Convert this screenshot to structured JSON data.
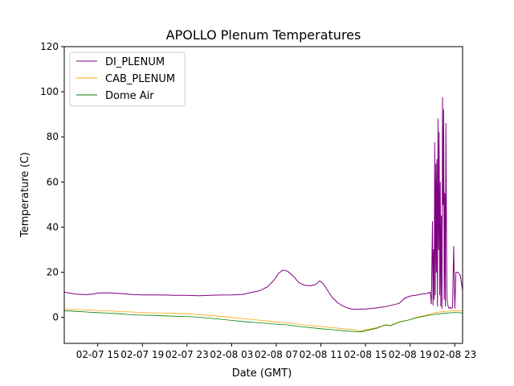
{
  "chart_data": {
    "type": "line",
    "title": "APOLLO Plenum Temperatures",
    "xlabel": "Date (GMT)",
    "ylabel": "Temperature (C)",
    "x_unit": "hours since 02-07 12:00 GMT",
    "xlim": [
      0,
      35.7
    ],
    "ylim": [
      -11.5,
      120
    ],
    "y_ticks": [
      0,
      20,
      40,
      60,
      80,
      100,
      120
    ],
    "x_ticks": [
      {
        "x": 3,
        "label": "02-07 15"
      },
      {
        "x": 7,
        "label": "02-07 19"
      },
      {
        "x": 11,
        "label": "02-07 23"
      },
      {
        "x": 15,
        "label": "02-08 03"
      },
      {
        "x": 19,
        "label": "02-08 07"
      },
      {
        "x": 23,
        "label": "02-08 11"
      },
      {
        "x": 27,
        "label": "02-08 15"
      },
      {
        "x": 31,
        "label": "02-08 19"
      },
      {
        "x": 35,
        "label": "02-08 23"
      }
    ],
    "grid": false,
    "legend_position": "top-left",
    "series": [
      {
        "name": "DI_PLENUM",
        "color": "#800080",
        "points": [
          [
            0,
            11.2
          ],
          [
            1,
            10.3
          ],
          [
            2,
            10.1
          ],
          [
            2.7,
            10.4
          ],
          [
            3,
            10.8
          ],
          [
            4,
            10.9
          ],
          [
            5,
            10.6
          ],
          [
            6,
            10.2
          ],
          [
            7,
            10.0
          ],
          [
            8,
            10.0
          ],
          [
            9,
            9.9
          ],
          [
            10,
            9.8
          ],
          [
            11,
            9.8
          ],
          [
            12,
            9.6
          ],
          [
            13,
            9.8
          ],
          [
            14,
            9.9
          ],
          [
            15,
            10.0
          ],
          [
            16,
            10.2
          ],
          [
            16.7,
            11.0
          ],
          [
            17.5,
            11.8
          ],
          [
            18.2,
            13.5
          ],
          [
            18.8,
            16.5
          ],
          [
            19.2,
            19.5
          ],
          [
            19.6,
            21.0
          ],
          [
            20,
            20.5
          ],
          [
            20.5,
            18.5
          ],
          [
            21,
            15.5
          ],
          [
            21.5,
            14.3
          ],
          [
            22,
            14.0
          ],
          [
            22.5,
            14.5
          ],
          [
            22.9,
            16.2
          ],
          [
            23.2,
            15.0
          ],
          [
            23.6,
            12.0
          ],
          [
            24,
            9.0
          ],
          [
            24.5,
            6.5
          ],
          [
            25,
            5.0
          ],
          [
            25.5,
            4.0
          ],
          [
            26,
            3.6
          ],
          [
            27,
            3.7
          ],
          [
            28,
            4.2
          ],
          [
            29,
            5.0
          ],
          [
            30,
            6.2
          ],
          [
            30.5,
            8.5
          ],
          [
            31,
            9.5
          ],
          [
            31.5,
            9.8
          ],
          [
            32,
            10.3
          ],
          [
            32.5,
            10.6
          ],
          [
            32.8,
            11.2
          ],
          [
            32.9,
            6.0
          ],
          [
            33.0,
            42.5
          ],
          [
            33.05,
            5.5
          ],
          [
            33.1,
            30.0
          ],
          [
            33.15,
            8.0
          ],
          [
            33.2,
            77.5
          ],
          [
            33.25,
            10.0
          ],
          [
            33.3,
            68.0
          ],
          [
            33.35,
            20.0
          ],
          [
            33.4,
            70.0
          ],
          [
            33.45,
            5.0
          ],
          [
            33.5,
            88.0
          ],
          [
            33.55,
            30.0
          ],
          [
            33.6,
            82.0
          ],
          [
            33.65,
            10.0
          ],
          [
            33.7,
            60.0
          ],
          [
            33.75,
            5.0
          ],
          [
            33.8,
            45.0
          ],
          [
            33.85,
            4.0
          ],
          [
            33.9,
            97.5
          ],
          [
            33.95,
            50.0
          ],
          [
            34.0,
            92.0
          ],
          [
            34.05,
            8.0
          ],
          [
            34.1,
            55.0
          ],
          [
            34.15,
            5.0
          ],
          [
            34.2,
            86.0
          ],
          [
            34.25,
            40.0
          ],
          [
            34.3,
            8.0
          ],
          [
            34.4,
            5.0
          ],
          [
            34.5,
            4.0
          ],
          [
            34.6,
            4.5
          ],
          [
            34.7,
            4.0
          ],
          [
            34.8,
            4.5
          ],
          [
            34.9,
            31.5
          ],
          [
            35.0,
            4.0
          ],
          [
            35.1,
            20.0
          ],
          [
            35.3,
            20.0
          ],
          [
            35.5,
            18.5
          ],
          [
            35.7,
            12.0
          ]
        ]
      },
      {
        "name": "CAB_PLENUM",
        "color": "#ffa500",
        "points": [
          [
            0,
            3.8
          ],
          [
            1,
            3.5
          ],
          [
            2,
            3.3
          ],
          [
            3,
            3.1
          ],
          [
            4,
            2.9
          ],
          [
            5,
            2.6
          ],
          [
            6,
            2.4
          ],
          [
            7,
            2.2
          ],
          [
            8,
            2.0
          ],
          [
            9,
            1.9
          ],
          [
            10,
            1.8
          ],
          [
            11,
            1.6
          ],
          [
            12,
            1.3
          ],
          [
            13,
            0.9
          ],
          [
            14,
            0.5
          ],
          [
            15,
            0.0
          ],
          [
            16,
            -0.5
          ],
          [
            17,
            -1.0
          ],
          [
            18,
            -1.5
          ],
          [
            19,
            -2.0
          ],
          [
            20,
            -2.4
          ],
          [
            21,
            -3.0
          ],
          [
            22,
            -3.6
          ],
          [
            23,
            -4.0
          ],
          [
            24,
            -4.5
          ],
          [
            25,
            -5.0
          ],
          [
            26,
            -5.5
          ],
          [
            26.6,
            -6.0
          ],
          [
            27,
            -5.5
          ],
          [
            28,
            -4.5
          ],
          [
            28.8,
            -3.2
          ],
          [
            29.2,
            -3.5
          ],
          [
            29.6,
            -2.8
          ],
          [
            30,
            -2.0
          ],
          [
            31,
            -1.0
          ],
          [
            31.5,
            0.0
          ],
          [
            32,
            0.5
          ],
          [
            32.5,
            1.0
          ],
          [
            33,
            1.8
          ],
          [
            33.5,
            2.3
          ],
          [
            34,
            2.6
          ],
          [
            34.5,
            2.8
          ],
          [
            35,
            3.0
          ],
          [
            35.7,
            2.8
          ]
        ]
      },
      {
        "name": "Dome Air",
        "color": "#008000",
        "points": [
          [
            0,
            3.0
          ],
          [
            1,
            2.7
          ],
          [
            2,
            2.4
          ],
          [
            3,
            2.1
          ],
          [
            4,
            1.9
          ],
          [
            5,
            1.6
          ],
          [
            6,
            1.2
          ],
          [
            7,
            1.0
          ],
          [
            8,
            0.9
          ],
          [
            9,
            0.7
          ],
          [
            10,
            0.5
          ],
          [
            11,
            0.4
          ],
          [
            12,
            0.1
          ],
          [
            13,
            -0.3
          ],
          [
            14,
            -0.8
          ],
          [
            15,
            -1.3
          ],
          [
            16,
            -1.8
          ],
          [
            17,
            -2.2
          ],
          [
            18,
            -2.6
          ],
          [
            19,
            -3.0
          ],
          [
            20,
            -3.3
          ],
          [
            21,
            -4.0
          ],
          [
            22,
            -4.5
          ],
          [
            23,
            -5.0
          ],
          [
            24,
            -5.4
          ],
          [
            25,
            -5.9
          ],
          [
            26,
            -6.3
          ],
          [
            26.6,
            -6.4
          ],
          [
            27,
            -5.9
          ],
          [
            28,
            -4.8
          ],
          [
            28.8,
            -3.3
          ],
          [
            29.2,
            -3.7
          ],
          [
            29.6,
            -3.0
          ],
          [
            30,
            -2.1
          ],
          [
            31,
            -1.0
          ],
          [
            31.5,
            -0.2
          ],
          [
            32,
            0.3
          ],
          [
            32.5,
            0.8
          ],
          [
            33,
            1.2
          ],
          [
            33.5,
            1.5
          ],
          [
            34,
            1.8
          ],
          [
            34.5,
            2.0
          ],
          [
            35,
            2.2
          ],
          [
            35.7,
            2.0
          ]
        ]
      }
    ]
  }
}
